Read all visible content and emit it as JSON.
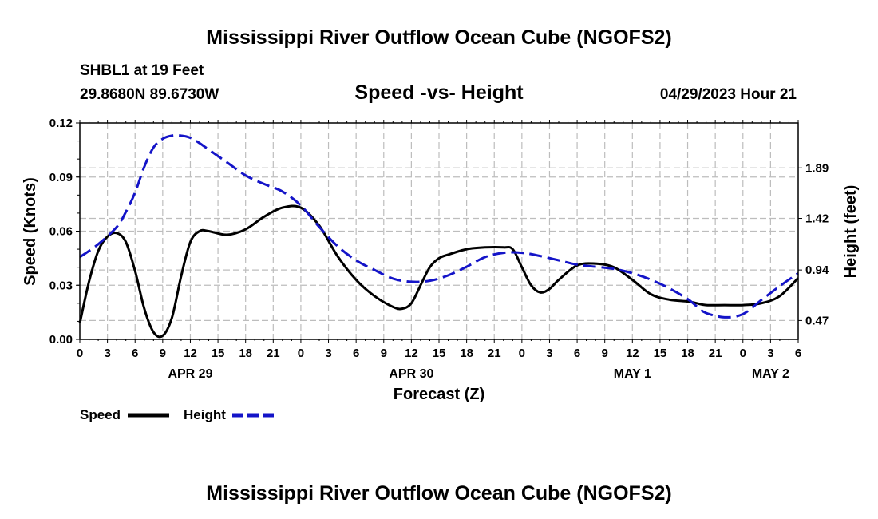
{
  "page": {
    "title": "Mississippi River Outflow Ocean Cube (NGOFS2)",
    "bottom_title": "Mississippi River Outflow Ocean Cube (NGOFS2)",
    "station": "SHBL1 at 19 Feet",
    "location": "29.8680N  89.6730W",
    "run_time": "04/29/2023 Hour 21"
  },
  "chart_data": {
    "type": "line",
    "title": "Speed -vs- Height",
    "xlabel": "Forecast (Z)",
    "ylabel_left": "Speed (Knots)",
    "ylabel_right": "Height (feet)",
    "xlim": [
      0,
      78
    ],
    "x_ticks": [
      0,
      3,
      6,
      9,
      12,
      15,
      18,
      21,
      24,
      27,
      30,
      33,
      36,
      39,
      42,
      45,
      48,
      51,
      54,
      57,
      60,
      63,
      66,
      69,
      72,
      75,
      78
    ],
    "x_tick_labels": [
      "0",
      "3",
      "6",
      "9",
      "12",
      "15",
      "18",
      "21",
      "0",
      "3",
      "6",
      "9",
      "12",
      "15",
      "18",
      "21",
      "0",
      "3",
      "6",
      "9",
      "12",
      "15",
      "18",
      "21",
      "0",
      "3",
      "6"
    ],
    "date_labels": [
      {
        "x": 12,
        "label": "APR 29"
      },
      {
        "x": 36,
        "label": "APR 30"
      },
      {
        "x": 60,
        "label": "MAY 1"
      },
      {
        "x": 75,
        "label": "MAY 2"
      }
    ],
    "ylim_left": [
      0,
      0.12
    ],
    "y_ticks_left": [
      0.0,
      0.03,
      0.06,
      0.09,
      0.12
    ],
    "y_tick_labels_left": [
      "0.00",
      "0.03",
      "0.06",
      "0.09",
      "0.12"
    ],
    "ylim_right": [
      0.2947,
      2.3079
    ],
    "y_ticks_right": [
      0.47,
      0.94,
      1.42,
      1.89
    ],
    "y_tick_labels_right": [
      "0.47",
      "0.94",
      "1.42",
      "1.89"
    ],
    "grid": true,
    "legend": {
      "position": "bottom-left",
      "entries": [
        "Speed",
        "Height"
      ]
    },
    "series": [
      {
        "name": "Speed",
        "axis": "left",
        "color": "#000000",
        "dash": "solid",
        "x": [
          0,
          1,
          2,
          3,
          4,
          5,
          6,
          7,
          8,
          9,
          10,
          11,
          12,
          13,
          14,
          16,
          18,
          20,
          22,
          24,
          26,
          28,
          30,
          32,
          34,
          35,
          36,
          37,
          38,
          39,
          40,
          42,
          44,
          46,
          47,
          48,
          49,
          50,
          51,
          52,
          54,
          56,
          58,
          60,
          62,
          64,
          66,
          67,
          68,
          70,
          72,
          74,
          76,
          78
        ],
        "y": [
          0.009,
          0.032,
          0.049,
          0.057,
          0.059,
          0.054,
          0.038,
          0.017,
          0.004,
          0.002,
          0.012,
          0.035,
          0.054,
          0.06,
          0.06,
          0.058,
          0.061,
          0.068,
          0.073,
          0.073,
          0.063,
          0.046,
          0.033,
          0.024,
          0.018,
          0.017,
          0.02,
          0.03,
          0.04,
          0.045,
          0.047,
          0.05,
          0.051,
          0.051,
          0.05,
          0.04,
          0.03,
          0.026,
          0.028,
          0.033,
          0.041,
          0.042,
          0.04,
          0.033,
          0.025,
          0.022,
          0.021,
          0.02,
          0.019,
          0.019,
          0.019,
          0.02,
          0.024,
          0.034
        ]
      },
      {
        "name": "Height",
        "axis": "right",
        "color": "#1414c8",
        "dash": "dashed",
        "x": [
          0,
          2,
          4,
          5,
          6,
          7,
          8,
          9,
          10,
          11,
          12,
          13,
          14,
          16,
          18,
          20,
          22,
          24,
          26,
          28,
          30,
          32,
          34,
          36,
          38,
          40,
          42,
          44,
          46,
          48,
          50,
          52,
          54,
          56,
          58,
          60,
          62,
          64,
          66,
          67,
          68,
          70,
          72,
          74,
          76,
          78
        ],
        "y": [
          1.06,
          1.18,
          1.34,
          1.48,
          1.66,
          1.9,
          2.08,
          2.16,
          2.19,
          2.19,
          2.17,
          2.12,
          2.06,
          1.94,
          1.82,
          1.74,
          1.67,
          1.54,
          1.34,
          1.16,
          1.03,
          0.94,
          0.86,
          0.83,
          0.84,
          0.89,
          0.97,
          1.06,
          1.1,
          1.1,
          1.07,
          1.03,
          0.99,
          0.97,
          0.95,
          0.91,
          0.85,
          0.77,
          0.67,
          0.6,
          0.54,
          0.5,
          0.53,
          0.66,
          0.79,
          0.91
        ]
      }
    ]
  }
}
